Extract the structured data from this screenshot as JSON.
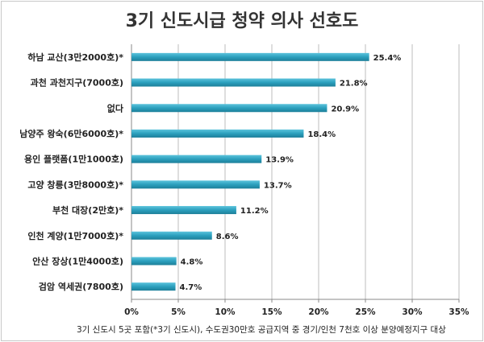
{
  "chart_data": {
    "type": "bar",
    "orientation": "horizontal",
    "title": "3기 신도시급 청약 의사 선호도",
    "categories": [
      "하남 교산(3만2000호)*",
      "과천 과천지구(7000호)",
      "없다",
      "남양주 왕숙(6만6000호)*",
      "용인 플랫폼(1만1000호)",
      "고양 창릉(3만8000호)*",
      "부천 대장(2만호)*",
      "인천 계양(1만7000호)*",
      "안산 장상(1만4000호)",
      "검암 역세권(7800호)"
    ],
    "values": [
      25.4,
      21.8,
      20.9,
      18.4,
      13.9,
      13.7,
      11.2,
      8.6,
      4.8,
      4.7
    ],
    "value_labels": [
      "25.4%",
      "21.8%",
      "20.9%",
      "18.4%",
      "13.9%",
      "13.7%",
      "11.2%",
      "8.6%",
      "4.8%",
      "4.7%"
    ],
    "xlim": [
      0,
      35
    ],
    "xticks": [
      0,
      5,
      10,
      15,
      20,
      25,
      30,
      35
    ],
    "xtick_labels": [
      "0%",
      "5%",
      "10%",
      "15%",
      "20%",
      "25%",
      "30%",
      "35%"
    ],
    "grid": true,
    "bar_color": "#2b9fbd",
    "footnote": "3기 신도시 5곳 포함(*3기 신도시), 수도권30만호 공급지역 중 경기/인천 7천호 이상 분양예정지구 대상"
  }
}
